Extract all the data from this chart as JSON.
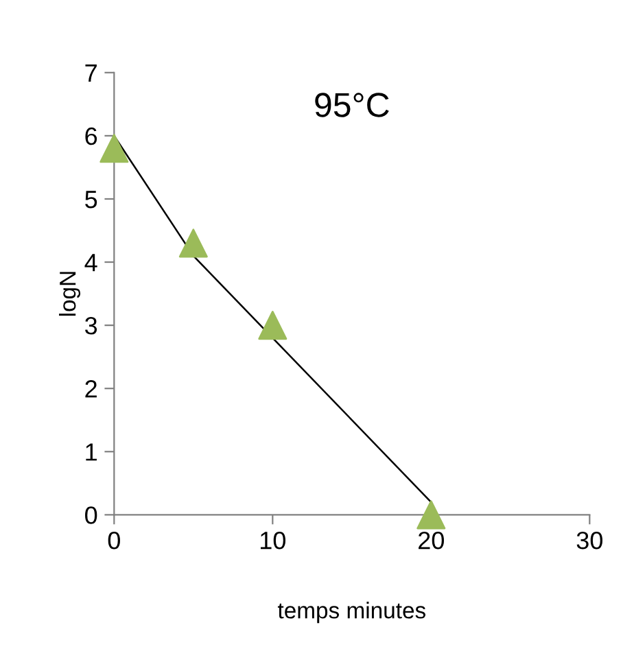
{
  "chart_data": {
    "type": "scatter",
    "title": "95°C",
    "xlabel": "temps minutes",
    "ylabel": "logN",
    "series": [
      {
        "color": "#9bbb59",
        "marker": "triangle",
        "x": [
          0,
          5,
          10,
          20
        ],
        "values": [
          5.8,
          4.3,
          3.0,
          0
        ]
      },
      {
        "type": "line",
        "color": "#000000",
        "marker": "none",
        "line_style": "solid",
        "x": [
          0,
          5,
          20
        ],
        "values": [
          6.0,
          4.1,
          0.2
        ]
      }
    ],
    "xlim": [
      0,
      30
    ],
    "xticks": [
      0,
      10,
      20,
      30
    ],
    "ylim": [
      0,
      7
    ],
    "yticks": [
      0,
      1,
      2,
      3,
      4,
      5,
      6,
      7
    ],
    "grid": false,
    "legend": false
  }
}
